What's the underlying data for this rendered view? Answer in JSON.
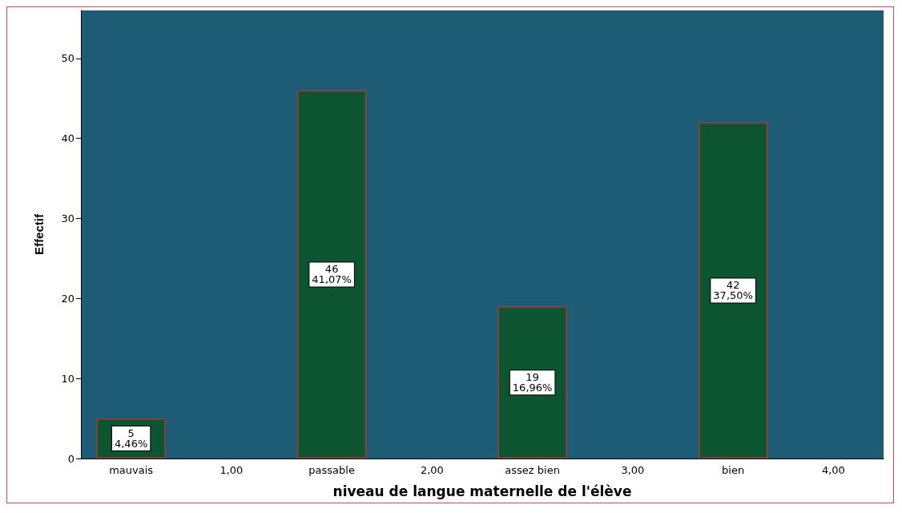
{
  "chart_data": {
    "type": "bar",
    "xlabel": "niveau de langue maternelle de l'élève",
    "ylabel": "Effectif",
    "categories": [
      "mauvais",
      "1,00",
      "passable",
      "2,00",
      "assez bien",
      "3,00",
      "bien",
      "4,00"
    ],
    "values": [
      5,
      null,
      46,
      null,
      19,
      null,
      42,
      null
    ],
    "value_labels": [
      "5\n4,46%",
      null,
      "46\n41,07%",
      null,
      "19\n16,96%",
      null,
      "42\n37,50%",
      null
    ],
    "color": "#0d5530",
    "ylim": [
      0,
      56
    ],
    "yticks": [
      0,
      10,
      20,
      30,
      40,
      50
    ],
    "grid": false
  }
}
